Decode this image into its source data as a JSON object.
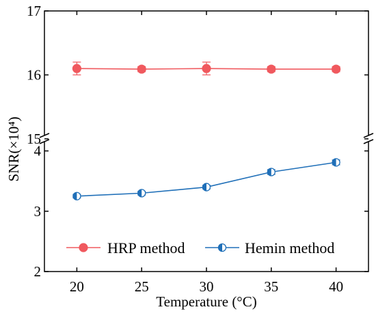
{
  "chart_data": {
    "type": "line",
    "xlabel": "Temperature (°C)",
    "ylabel": "SNR(×10⁴)",
    "x": [
      20,
      25,
      30,
      35,
      40
    ],
    "x_ticks": [
      "20",
      "25",
      "30",
      "35",
      "40"
    ],
    "xlim": [
      17.5,
      42.5
    ],
    "y_axis_break": true,
    "y_upper_range": [
      15,
      17
    ],
    "y_lower_range": [
      2,
      4.2
    ],
    "y_ticks_upper": [
      "15",
      "16",
      "17"
    ],
    "y_ticks_lower": [
      "2",
      "3",
      "4"
    ],
    "grid": false,
    "legend_position": "bottom",
    "series": [
      {
        "name": "HRP method",
        "color": "#f0595e",
        "marker": "filled-circle",
        "values": [
          16.1,
          16.09,
          16.1,
          16.09,
          16.09
        ],
        "errors": [
          0.1,
          0.04,
          0.1,
          0.04,
          0.04
        ]
      },
      {
        "name": "Hemin method",
        "color": "#1f6fb8",
        "marker": "half-filled-circle",
        "values": [
          3.25,
          3.3,
          3.4,
          3.65,
          3.81
        ],
        "errors": [
          0.03,
          0.03,
          0.03,
          0.04,
          0.04
        ]
      }
    ]
  }
}
